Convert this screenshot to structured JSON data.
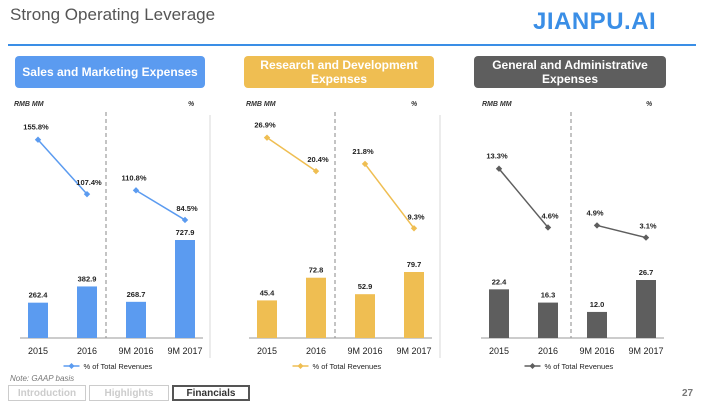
{
  "title": "Strong Operating Leverage",
  "logo": {
    "text": "JIANPU.AI",
    "color": "#3a8ee6"
  },
  "footnote": "Note: GAAP basis",
  "page_number": "27",
  "tabs": [
    {
      "label": "Introduction",
      "active": false
    },
    {
      "label": "Highlights",
      "active": false
    },
    {
      "label": "Financials",
      "active": true
    }
  ],
  "colors": {
    "blue": "#5b9bf0",
    "blueLine": "#5b9bf0",
    "gold": "#efbe52",
    "goldLine": "#efbe52",
    "gray": "#5e5e5e",
    "grayLine": "#5e5e5e"
  },
  "chart_data": [
    {
      "type": "bar",
      "title": "Sales and Marketing Expenses",
      "left_axis_label": "RMB MM",
      "right_axis_label": "%",
      "categories": [
        "2015",
        "2016",
        "9M 2016",
        "9M 2017"
      ],
      "series": [
        {
          "values": [
            262.4,
            382.9,
            268.7,
            727.9
          ]
        },
        {
          "name": "% of Total Revenues",
          "values": [
            "155.8%",
            "107.4%",
            "110.8%",
            "84.5%"
          ],
          "numeric": [
            155.8,
            107.4,
            110.8,
            84.5
          ]
        }
      ],
      "color": "blue"
    },
    {
      "type": "bar",
      "title": "Research and Development Expenses",
      "left_axis_label": "RMB MM",
      "right_axis_label": "%",
      "categories": [
        "2015",
        "2016",
        "9M 2016",
        "9M 2017"
      ],
      "series": [
        {
          "values": [
            45.4,
            72.8,
            52.9,
            79.7
          ]
        },
        {
          "name": "% of Total Revenues",
          "values": [
            "26.9%",
            "20.4%",
            "21.8%",
            "9.3%"
          ],
          "numeric": [
            26.9,
            20.4,
            21.8,
            9.3
          ]
        }
      ],
      "color": "gold"
    },
    {
      "type": "bar",
      "title": "General and Administrative Expenses",
      "left_axis_label": "RMB MM",
      "right_axis_label": "%",
      "categories": [
        "2015",
        "2016",
        "9M 2016",
        "9M 2017"
      ],
      "series": [
        {
          "values": [
            22.4,
            16.3,
            12.0,
            26.7
          ]
        },
        {
          "name": "% of Total Revenues",
          "values": [
            "13.3%",
            "4.6%",
            "4.9%",
            "3.1%"
          ],
          "numeric": [
            13.3,
            4.6,
            4.9,
            3.1
          ]
        }
      ],
      "color": "gray"
    }
  ]
}
